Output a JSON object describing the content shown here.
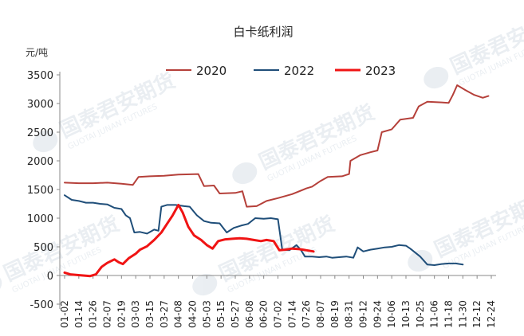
{
  "chart_data": {
    "type": "line",
    "title": "白卡纸利润",
    "ylabel": "元/吨",
    "xlabel": "",
    "ylim": [
      -500,
      3500
    ],
    "yticks": [
      -500,
      0,
      500,
      1000,
      1500,
      2000,
      2500,
      3000,
      3500
    ],
    "grid": false,
    "legend_position": "top",
    "x_ticks": [
      "01-02",
      "01-14",
      "01-26",
      "02-07",
      "02-19",
      "03-03",
      "03-15",
      "03-27",
      "04-08",
      "04-20",
      "05-03",
      "05-15",
      "05-27",
      "06-08",
      "06-20",
      "07-02",
      "07-14",
      "07-26",
      "08-07",
      "08-19",
      "08-31",
      "09-12",
      "09-24",
      "10-06",
      "10-13",
      "10-25",
      "11-06",
      "11-18",
      "11-30",
      "12-12",
      "12-24"
    ],
    "series": [
      {
        "name": "2020",
        "color": "#b5403a",
        "width": 2,
        "points": [
          [
            0,
            1620
          ],
          [
            1,
            1610
          ],
          [
            2,
            1610
          ],
          [
            3,
            1620
          ],
          [
            4,
            1600
          ],
          [
            4.8,
            1580
          ],
          [
            5.2,
            1720
          ],
          [
            6,
            1730
          ],
          [
            7,
            1740
          ],
          [
            8,
            1760
          ],
          [
            9.4,
            1770
          ],
          [
            9.8,
            1560
          ],
          [
            10.5,
            1570
          ],
          [
            10.9,
            1430
          ],
          [
            12,
            1440
          ],
          [
            12.5,
            1470
          ],
          [
            12.8,
            1200
          ],
          [
            13.5,
            1210
          ],
          [
            14.2,
            1300
          ],
          [
            15,
            1350
          ],
          [
            16,
            1420
          ],
          [
            17,
            1520
          ],
          [
            17.4,
            1550
          ],
          [
            18,
            1650
          ],
          [
            18.5,
            1720
          ],
          [
            19.5,
            1730
          ],
          [
            20,
            1770
          ],
          [
            20.1,
            2000
          ],
          [
            20.8,
            2100
          ],
          [
            21.5,
            2150
          ],
          [
            22,
            2180
          ],
          [
            22.3,
            2500
          ],
          [
            23,
            2550
          ],
          [
            23.6,
            2720
          ],
          [
            24.5,
            2750
          ],
          [
            24.9,
            2950
          ],
          [
            25.5,
            3030
          ],
          [
            26.5,
            3020
          ],
          [
            27,
            3010
          ],
          [
            27.3,
            3150
          ],
          [
            27.6,
            3320
          ],
          [
            28.2,
            3230
          ],
          [
            28.8,
            3150
          ],
          [
            29.4,
            3100
          ],
          [
            29.8,
            3130
          ]
        ]
      },
      {
        "name": "2022",
        "color": "#1f4e79",
        "width": 2,
        "points": [
          [
            0,
            1400
          ],
          [
            0.5,
            1320
          ],
          [
            1,
            1300
          ],
          [
            1.5,
            1270
          ],
          [
            2,
            1270
          ],
          [
            2.5,
            1250
          ],
          [
            3,
            1240
          ],
          [
            3.5,
            1180
          ],
          [
            4,
            1160
          ],
          [
            4.3,
            1050
          ],
          [
            4.6,
            1000
          ],
          [
            4.9,
            750
          ],
          [
            5.3,
            760
          ],
          [
            5.8,
            730
          ],
          [
            6.3,
            800
          ],
          [
            6.6,
            780
          ],
          [
            6.8,
            1200
          ],
          [
            7.2,
            1230
          ],
          [
            7.8,
            1230
          ],
          [
            8.4,
            1210
          ],
          [
            8.8,
            1200
          ],
          [
            9.3,
            1050
          ],
          [
            9.8,
            950
          ],
          [
            10.3,
            920
          ],
          [
            10.9,
            910
          ],
          [
            11.4,
            750
          ],
          [
            11.9,
            830
          ],
          [
            12.4,
            870
          ],
          [
            12.9,
            900
          ],
          [
            13.4,
            1000
          ],
          [
            14,
            990
          ],
          [
            14.5,
            1000
          ],
          [
            15,
            980
          ],
          [
            15.3,
            450
          ],
          [
            15.8,
            440
          ],
          [
            16.3,
            530
          ],
          [
            16.6,
            450
          ],
          [
            16.9,
            330
          ],
          [
            17.4,
            330
          ],
          [
            17.9,
            320
          ],
          [
            18.4,
            330
          ],
          [
            18.8,
            310
          ],
          [
            19.3,
            320
          ],
          [
            19.8,
            330
          ],
          [
            20.3,
            310
          ],
          [
            20.6,
            490
          ],
          [
            21,
            420
          ],
          [
            21.5,
            450
          ],
          [
            22,
            470
          ],
          [
            22.5,
            490
          ],
          [
            23.0,
            500
          ],
          [
            23.5,
            530
          ],
          [
            24.0,
            520
          ],
          [
            24.3,
            470
          ],
          [
            25.0,
            330
          ],
          [
            25.5,
            190
          ],
          [
            26.0,
            180
          ],
          [
            26.5,
            200
          ],
          [
            27.0,
            210
          ],
          [
            27.5,
            210
          ],
          [
            28.0,
            190
          ]
        ]
      },
      {
        "name": "2023",
        "color": "#f01414",
        "width": 3,
        "points": [
          [
            0,
            50
          ],
          [
            0.4,
            20
          ],
          [
            0.8,
            10
          ],
          [
            1.3,
            0
          ],
          [
            1.8,
            -10
          ],
          [
            2.2,
            20
          ],
          [
            2.6,
            150
          ],
          [
            3.0,
            220
          ],
          [
            3.5,
            280
          ],
          [
            3.8,
            230
          ],
          [
            4.1,
            200
          ],
          [
            4.5,
            300
          ],
          [
            5.0,
            380
          ],
          [
            5.3,
            450
          ],
          [
            5.8,
            510
          ],
          [
            6.3,
            620
          ],
          [
            6.8,
            750
          ],
          [
            7.2,
            900
          ],
          [
            7.6,
            1050
          ],
          [
            8.0,
            1230
          ],
          [
            8.3,
            1100
          ],
          [
            8.7,
            850
          ],
          [
            9.1,
            700
          ],
          [
            9.6,
            620
          ],
          [
            10.0,
            530
          ],
          [
            10.4,
            470
          ],
          [
            10.8,
            600
          ],
          [
            11.3,
            630
          ],
          [
            11.8,
            640
          ],
          [
            12.3,
            650
          ],
          [
            12.8,
            640
          ],
          [
            13.3,
            620
          ],
          [
            13.8,
            600
          ],
          [
            14.2,
            620
          ],
          [
            14.7,
            600
          ],
          [
            15.1,
            440
          ],
          [
            15.5,
            450
          ],
          [
            16.0,
            470
          ],
          [
            16.5,
            460
          ],
          [
            17.0,
            440
          ],
          [
            17.5,
            420
          ]
        ]
      }
    ]
  },
  "watermark": {
    "text_cn": "国泰君安期货",
    "text_en": "GUOTAI JUNAN FUTURES"
  }
}
